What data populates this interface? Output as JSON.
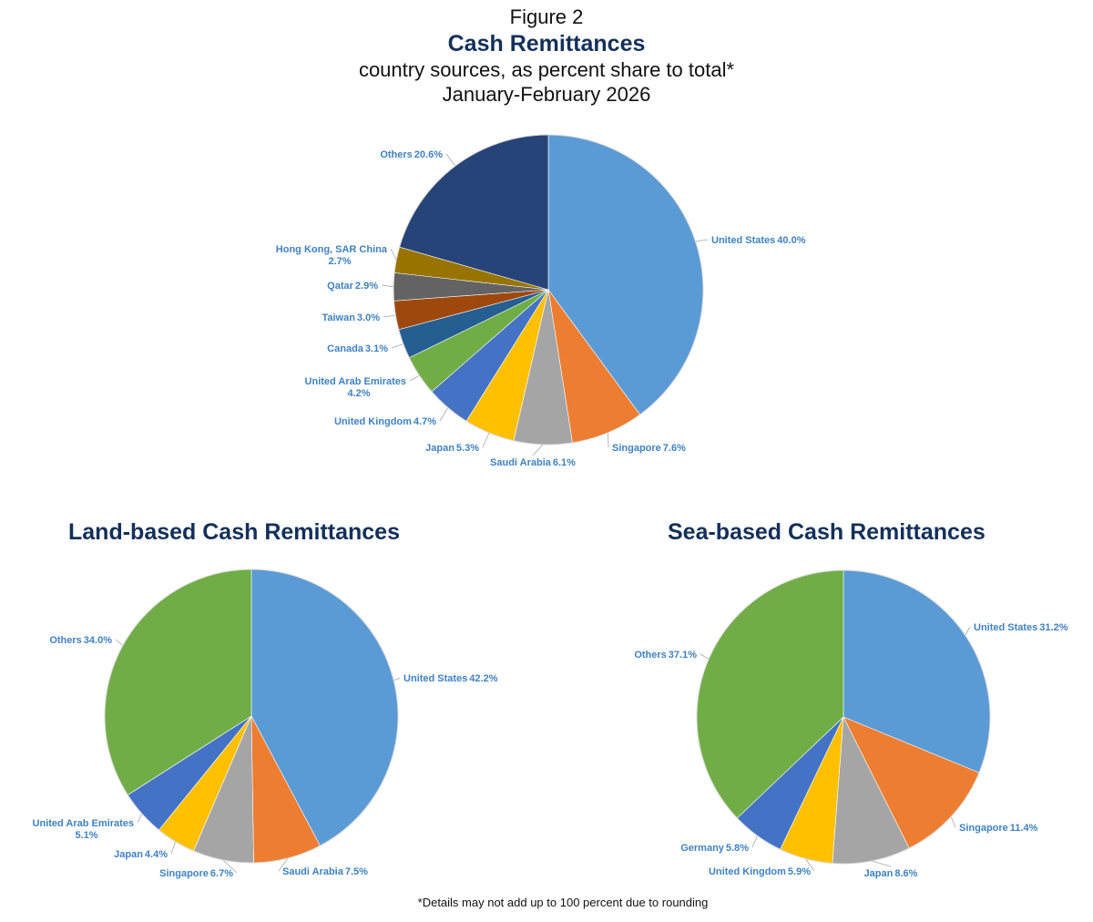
{
  "header": {
    "figure": "Figure 2",
    "title": "Cash Remittances",
    "subtitle": "country sources, as percent share to total*",
    "period": "January-February 2026"
  },
  "footnote": "*Details may not add up to 100 percent due to rounding",
  "chart_data": [
    {
      "type": "pie",
      "title": "Cash Remittances",
      "slices": [
        {
          "label": "United States",
          "value": 40.0,
          "text": "40.0%",
          "color": "#5b9bd5"
        },
        {
          "label": "Singapore",
          "value": 7.6,
          "text": "7.6%",
          "color": "#ed7d31"
        },
        {
          "label": "Saudi Arabia",
          "value": 6.1,
          "text": "6.1%",
          "color": "#a5a5a5"
        },
        {
          "label": "Japan",
          "value": 5.3,
          "text": "5.3%",
          "color": "#ffc000"
        },
        {
          "label": "United Kingdom",
          "value": 4.7,
          "text": "4.7%",
          "color": "#4472c4"
        },
        {
          "label": "United Arab Emirates",
          "value": 4.2,
          "text": "4.2%",
          "color": "#70ad47"
        },
        {
          "label": "Canada",
          "value": 3.1,
          "text": "3.1%",
          "color": "#255e91"
        },
        {
          "label": "Taiwan",
          "value": 3.0,
          "text": "3.0%",
          "color": "#9e480e"
        },
        {
          "label": "Qatar",
          "value": 2.9,
          "text": "2.9%",
          "color": "#636363"
        },
        {
          "label": "Hong Kong, SAR China",
          "value": 2.7,
          "text": "2.7%",
          "color": "#997300"
        },
        {
          "label": "Others",
          "value": 20.6,
          "text": "20.6%",
          "color": "#264478"
        }
      ]
    },
    {
      "type": "pie",
      "title": "Land-based Cash Remittances",
      "slices": [
        {
          "label": "United States",
          "value": 42.2,
          "text": "42.2%",
          "color": "#5b9bd5"
        },
        {
          "label": "Saudi Arabia",
          "value": 7.5,
          "text": "7.5%",
          "color": "#ed7d31"
        },
        {
          "label": "Singapore",
          "value": 6.7,
          "text": "6.7%",
          "color": "#a5a5a5"
        },
        {
          "label": "Japan",
          "value": 4.4,
          "text": "4.4%",
          "color": "#ffc000"
        },
        {
          "label": "United Arab Emirates",
          "value": 5.1,
          "text": "5.1%",
          "color": "#4472c4"
        },
        {
          "label": "Others",
          "value": 34.0,
          "text": "34.0%",
          "color": "#70ad47"
        }
      ]
    },
    {
      "type": "pie",
      "title": "Sea-based Cash Remittances",
      "slices": [
        {
          "label": "United States",
          "value": 31.2,
          "text": "31.2%",
          "color": "#5b9bd5"
        },
        {
          "label": "Singapore",
          "value": 11.4,
          "text": "11.4%",
          "color": "#ed7d31"
        },
        {
          "label": "Japan",
          "value": 8.6,
          "text": "8.6%",
          "color": "#a5a5a5"
        },
        {
          "label": "United Kingdom",
          "value": 5.9,
          "text": "5.9%",
          "color": "#ffc000"
        },
        {
          "label": "Germany",
          "value": 5.8,
          "text": "5.8%",
          "color": "#4472c4"
        },
        {
          "label": "Others",
          "value": 37.1,
          "text": "37.1%",
          "color": "#70ad47"
        }
      ]
    }
  ]
}
